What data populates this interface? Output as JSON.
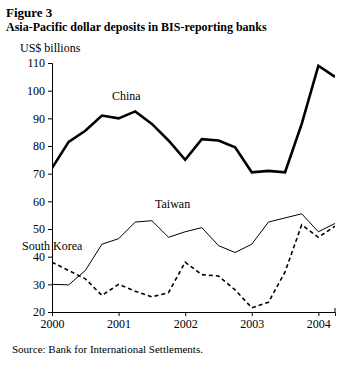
{
  "chart_data": {
    "type": "line",
    "title": "Figure 3",
    "subtitle": "Asia-Pacific dollar deposits in BIS-reporting banks",
    "ylabel": "US$ billions",
    "source": "Source: Bank for International Settlements.",
    "x": [
      2000,
      2000.25,
      2000.5,
      2000.75,
      2001,
      2001.25,
      2001.5,
      2001.75,
      2002,
      2002.25,
      2002.5,
      2002.75,
      2003,
      2003.25,
      2003.5,
      2003.75,
      2004,
      2004.25
    ],
    "xlim": [
      2000,
      2004.25
    ],
    "xticks": [
      2000,
      2001,
      2002,
      2003,
      2004
    ],
    "ylim": [
      20,
      110
    ],
    "yticks": [
      20,
      30,
      40,
      50,
      60,
      70,
      80,
      90,
      100,
      110
    ],
    "grid": false,
    "series": [
      {
        "name": "China",
        "color": "#000000",
        "line_style": "solid",
        "values": [
          72,
          81.5,
          85.5,
          91,
          90,
          92.5,
          88,
          82,
          75,
          82.5,
          82,
          79.5,
          70.5,
          71,
          70.5,
          88,
          109,
          105
        ]
      },
      {
        "name": "Taiwan",
        "color": "#000000",
        "line_style": "solid",
        "values": [
          30,
          29.8,
          35,
          44.5,
          46.5,
          52.5,
          53,
          47,
          49,
          50.5,
          44,
          41.5,
          44.5,
          52.5,
          54,
          55.5,
          49,
          52
        ]
      },
      {
        "name": "South Korea",
        "color": "#000000",
        "line_style": "dashed",
        "values": [
          38,
          35,
          32,
          26,
          30,
          27.5,
          25.5,
          27,
          38,
          33.5,
          33,
          28,
          21.5,
          23.5,
          34.5,
          51.5,
          47,
          51
        ]
      }
    ]
  }
}
